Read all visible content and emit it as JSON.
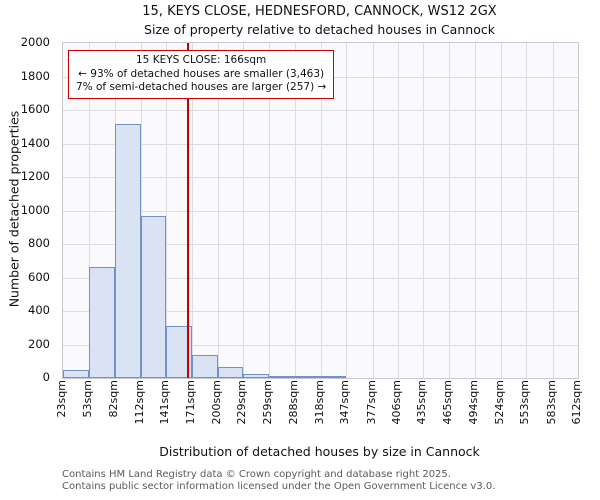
{
  "chart_data": {
    "type": "bar",
    "title": "15, KEYS CLOSE, HEDNESFORD, CANNOCK, WS12 2GX",
    "subtitle": "Size of property relative to detached houses in Cannock",
    "xlabel": "Distribution of detached houses by size in Cannock",
    "ylabel": "Number of detached properties",
    "ylim": [
      0,
      2000
    ],
    "ytick_step": 200,
    "grid": true,
    "bin_edges": [
      23,
      53,
      82,
      112,
      141,
      171,
      200,
      229,
      259,
      288,
      318,
      347,
      377,
      406,
      435,
      465,
      494,
      524,
      553,
      583,
      612
    ],
    "x_tick_labels": [
      "23sqm",
      "53sqm",
      "82sqm",
      "112sqm",
      "141sqm",
      "171sqm",
      "200sqm",
      "229sqm",
      "259sqm",
      "288sqm",
      "318sqm",
      "347sqm",
      "377sqm",
      "406sqm",
      "435sqm",
      "465sqm",
      "494sqm",
      "524sqm",
      "553sqm",
      "583sqm",
      "612sqm"
    ],
    "values": [
      50,
      660,
      1515,
      970,
      310,
      135,
      65,
      25,
      12,
      10,
      8,
      0,
      0,
      0,
      0,
      0,
      0,
      0,
      0,
      0
    ],
    "marker": {
      "value": 166,
      "color": "#cc0000"
    },
    "annotation": {
      "line1": "15 KEYS CLOSE: 166sqm",
      "line2": "← 93% of detached houses are smaller (3,463)",
      "line3": "7% of semi-detached houses are larger (257) →"
    },
    "colors": {
      "bar_fill": "#d9e3f3",
      "bar_edge": "#7091c9",
      "marker_line": "#cc0000",
      "gridline": "#dcdce6"
    }
  },
  "footer": {
    "line1": "Contains HM Land Registry data © Crown copyright and database right 2025.",
    "line2": "Contains public sector information licensed under the Open Government Licence v3.0."
  }
}
